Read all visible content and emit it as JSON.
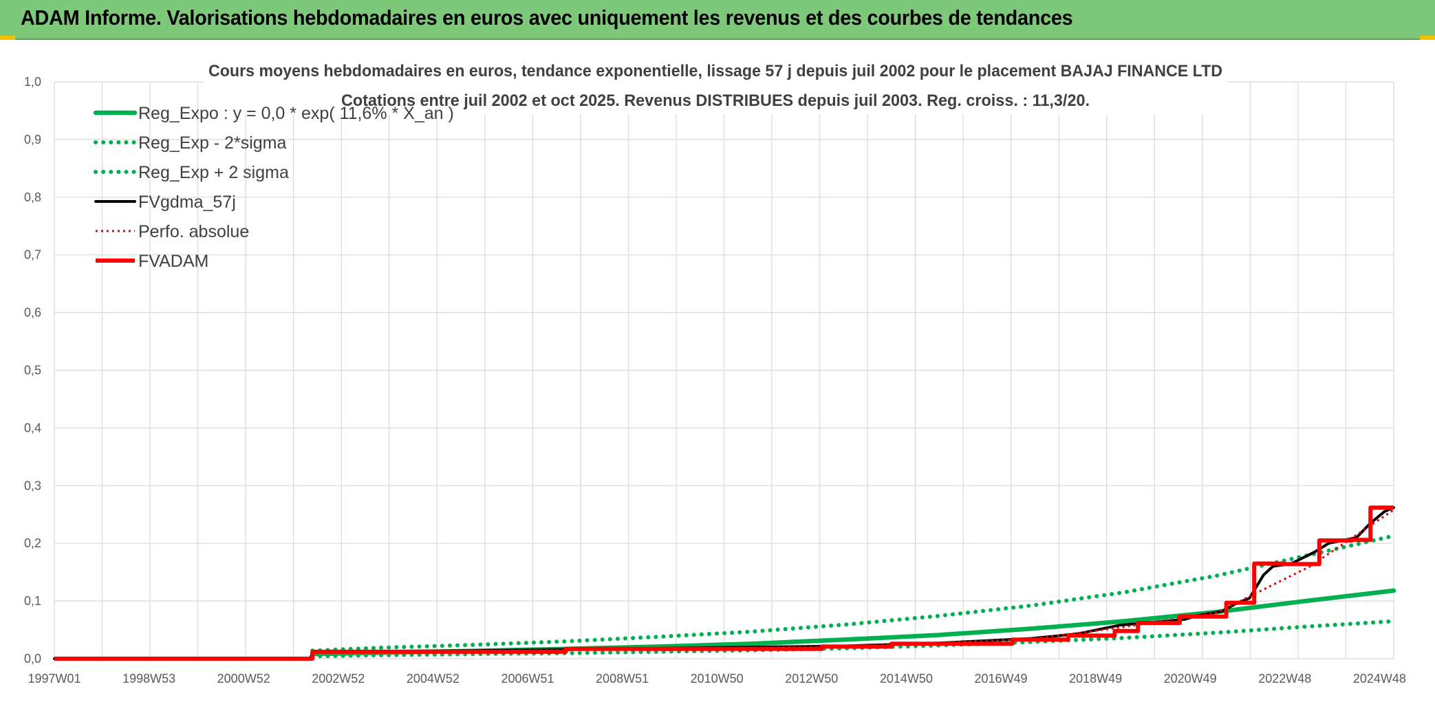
{
  "header": {
    "title": "ADAM Informe. Valorisations hebdomadaires en euros avec uniquement les revenus et des courbes de tendances"
  },
  "colors": {
    "header_bg": "#7ec87a",
    "reg_expo": "#00b050",
    "fv_gdma": "#000000",
    "fvadam": "#ff0000",
    "perfo": "#e00000"
  },
  "chart_data": {
    "type": "line",
    "title": "Cours moyens hebdomadaires en euros, tendance exponentielle, lissage 57 j depuis juil 2002 pour le placement BAJAJ FINANCE LTD",
    "subtitle": "Cotations entre juil 2002 et oct 2025. Revenus DISTRIBUES depuis juil 2003. Reg. croiss. : 11,3/20.",
    "x_tick_labels": [
      "1997W01",
      "1998W53",
      "2000W52",
      "2002W52",
      "2004W52",
      "2006W51",
      "2008W51",
      "2010W50",
      "2012W50",
      "2014W50",
      "2016W49",
      "2018W49",
      "2020W49",
      "2022W48",
      "2024W48"
    ],
    "x_range": [
      1997.0,
      2025.8
    ],
    "ylim": [
      0,
      1
    ],
    "y_tick_labels": [
      "0,0",
      "0,1",
      "0,2",
      "0,3",
      "0,4",
      "0,5",
      "0,6",
      "0,7",
      "0,8",
      "0,9",
      "1,0"
    ],
    "grid": true,
    "legend_position": "top-left",
    "series": [
      {
        "name": "Reg_Expo : y = 0,0 * exp( 11,6% *  X_an )",
        "style": "solid-thick",
        "color": "#00b050",
        "x": [
          2002.55,
          2004,
          2006,
          2008,
          2010,
          2012,
          2014,
          2016,
          2018,
          2020,
          2022,
          2024,
          2025.8
        ],
        "y": [
          0.008,
          0.0105,
          0.0135,
          0.017,
          0.021,
          0.026,
          0.033,
          0.041,
          0.052,
          0.065,
          0.081,
          0.101,
          0.118
        ]
      },
      {
        "name": "Reg_Exp - 2*sigma",
        "style": "dotted",
        "color": "#00b050",
        "x": [
          2002.55,
          2004,
          2006,
          2008,
          2010,
          2012,
          2014,
          2016,
          2018,
          2020,
          2022,
          2024,
          2025.8
        ],
        "y": [
          0.004,
          0.006,
          0.008,
          0.0095,
          0.012,
          0.0145,
          0.018,
          0.023,
          0.029,
          0.036,
          0.045,
          0.056,
          0.065
        ]
      },
      {
        "name": "Reg_Exp + 2 sigma",
        "style": "dotted",
        "color": "#00b050",
        "x": [
          2002.55,
          2004,
          2006,
          2008,
          2010,
          2012,
          2014,
          2016,
          2018,
          2020,
          2022,
          2024,
          2025.8
        ],
        "y": [
          0.014,
          0.019,
          0.024,
          0.03,
          0.038,
          0.047,
          0.059,
          0.074,
          0.092,
          0.115,
          0.144,
          0.18,
          0.213
        ]
      },
      {
        "name": "FVgdma_57j",
        "style": "solid",
        "color": "#000000",
        "x": [
          1997.0,
          2002.5,
          2002.56,
          2006,
          2010,
          2014,
          2016,
          2018,
          2019,
          2019.9,
          2021.3,
          2021.6,
          2022.1,
          2022.4,
          2022.7,
          2023.0,
          2023.2,
          2023.6,
          2024.1,
          2024.4,
          2025.0,
          2025.3,
          2025.6,
          2025.8
        ],
        "y": [
          0.0,
          0.0,
          0.012,
          0.014,
          0.018,
          0.022,
          0.027,
          0.035,
          0.043,
          0.058,
          0.068,
          0.075,
          0.082,
          0.095,
          0.105,
          0.145,
          0.16,
          0.165,
          0.185,
          0.2,
          0.21,
          0.235,
          0.255,
          0.262
        ]
      },
      {
        "name": "Perfo. absolue",
        "style": "dotted",
        "color": "#e00000",
        "x": [
          1997.0,
          2002.5,
          2002.56,
          2006,
          2010,
          2014,
          2018,
          2020,
          2022,
          2024,
          2025.8
        ],
        "y": [
          0.0,
          0.0,
          0.011,
          0.013,
          0.017,
          0.021,
          0.034,
          0.055,
          0.08,
          0.16,
          0.258
        ]
      },
      {
        "name": "FVADAM",
        "style": "step-thick",
        "color": "#ff0000",
        "x": [
          1997.0,
          2002.55,
          2002.55,
          2008.0,
          2008.0,
          2013.5,
          2013.5,
          2015.0,
          2015.0,
          2017.6,
          2017.6,
          2018.8,
          2018.8,
          2019.8,
          2019.8,
          2020.3,
          2020.3,
          2021.2,
          2021.2,
          2022.2,
          2022.2,
          2022.8,
          2022.8,
          2023.45,
          2023.45,
          2024.2,
          2024.2,
          2024.9,
          2024.9,
          2025.3,
          2025.3,
          2025.8
        ],
        "y": [
          0.0,
          0.0,
          0.012,
          0.012,
          0.017,
          0.017,
          0.021,
          0.021,
          0.026,
          0.026,
          0.033,
          0.033,
          0.04,
          0.04,
          0.048,
          0.048,
          0.062,
          0.062,
          0.073,
          0.073,
          0.097,
          0.097,
          0.165,
          0.165,
          0.164,
          0.164,
          0.205,
          0.205,
          0.206,
          0.206,
          0.262,
          0.262
        ]
      }
    ]
  }
}
